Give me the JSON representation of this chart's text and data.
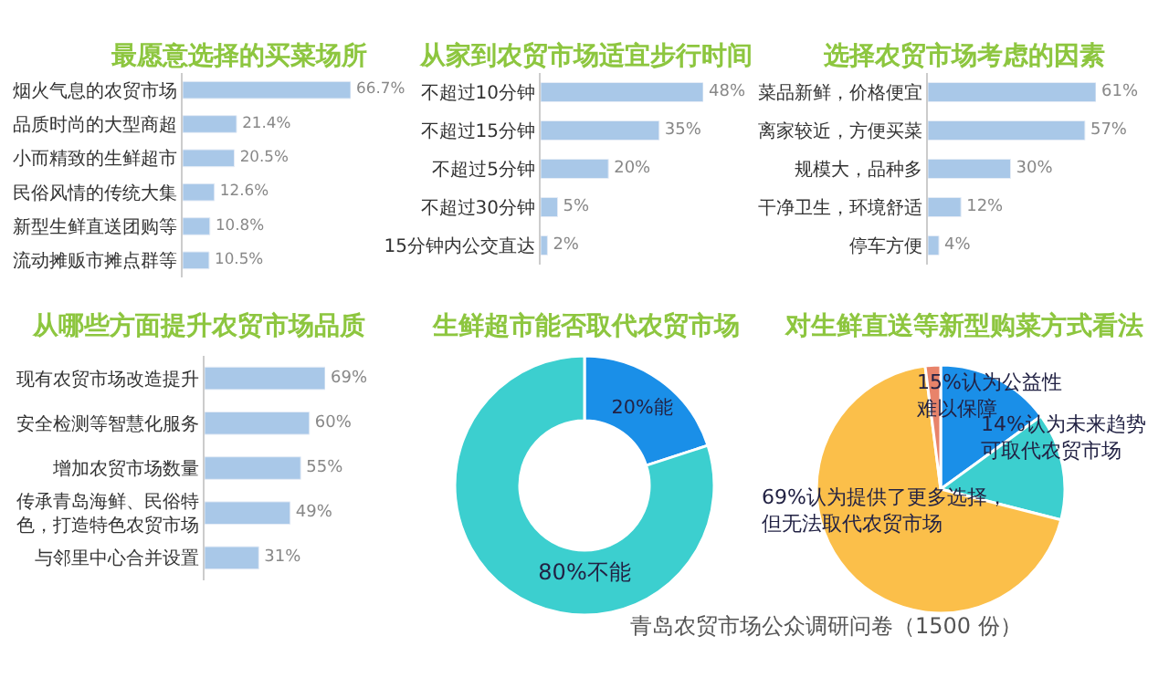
{
  "chart_data": [
    {
      "type": "bar",
      "orientation": "horizontal",
      "title": "最愿意选择的买菜场所",
      "tick_labels": "y",
      "color": "#a9c8e8",
      "categories": [
        "烟火气息的农贸市场",
        "品质时尚的大型商超",
        "小而精致的生鲜超市",
        "民俗风情的传统大集",
        "新型生鲜直送团购等",
        "流动摊贩市摊点群等"
      ],
      "values": [
        66.7,
        21.4,
        20.5,
        12.6,
        10.8,
        10.5
      ],
      "value_labels": [
        "66.7%",
        "21.4%",
        "20.5%",
        "12.6%",
        "10.8%",
        "10.5%"
      ]
    },
    {
      "type": "bar",
      "orientation": "horizontal",
      "title": "从家到农贸市场适宜步行时间",
      "tick_labels": "y",
      "color": "#a9c8e8",
      "categories": [
        "不超过10分钟",
        "不超过15分钟",
        "不超过5分钟",
        "不超过30分钟",
        "15分钟内公交直达"
      ],
      "values": [
        48,
        35,
        20,
        5,
        2
      ],
      "value_labels": [
        "48%",
        "35%",
        "20%",
        "5%",
        "2%"
      ]
    },
    {
      "type": "bar",
      "orientation": "horizontal",
      "title": "选择农贸市场考虑的因素",
      "tick_labels": "y",
      "color": "#a9c8e8",
      "categories": [
        "菜品新鲜，价格便宜",
        "离家较近，方便买菜",
        "规模大，品种多",
        "干净卫生，环境舒适",
        "停车方便"
      ],
      "values": [
        61,
        57,
        30,
        12,
        4
      ],
      "value_labels": [
        "61%",
        "57%",
        "30%",
        "12%",
        "4%"
      ]
    },
    {
      "type": "bar",
      "orientation": "horizontal",
      "title": "从哪些方面提升农贸市场品质",
      "tick_labels": "y",
      "color": "#a9c8e8",
      "categories": [
        "现有农贸市场改造提升",
        "安全检测等智慧化服务",
        "增加农贸市场数量",
        "传承青岛海鲜、民俗特色，打造特色农贸市场",
        "与邻里中心合并设置"
      ],
      "values": [
        69,
        60,
        55,
        49,
        31
      ],
      "value_labels": [
        "69%",
        "60%",
        "55%",
        "49%",
        "31%"
      ]
    },
    {
      "type": "donut",
      "title": "生鲜超市能否取代农贸市场",
      "categories": [
        "20%能",
        "80%不能"
      ],
      "values": [
        20,
        80
      ],
      "colors": [
        "#1a8fe8",
        "#3ccfcf"
      ]
    },
    {
      "type": "pie",
      "title": "对生鲜直送等新型购菜方式看法",
      "categories": [
        "15%认为公益性难以保障",
        "14%认为未来趋势可取代农贸市场",
        "69%认为提供了更多选择，但无法取代农贸市场",
        null
      ],
      "values": [
        15,
        14,
        69,
        2
      ],
      "colors": [
        "#1a8fe8",
        "#3ccfcf",
        "#fbbf4a",
        "#e8836a"
      ],
      "annotations": [
        "青岛农贸市场公众调研问卷（1500 份）"
      ]
    }
  ]
}
